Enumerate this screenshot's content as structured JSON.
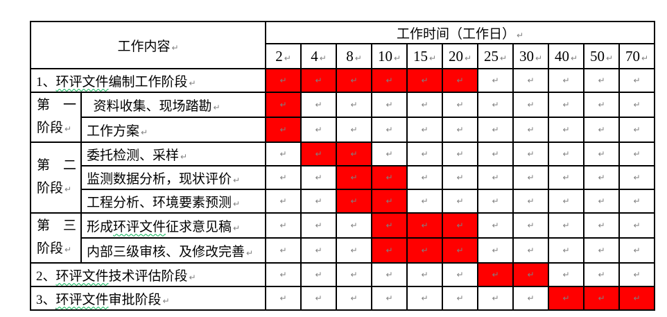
{
  "document": {
    "header": {
      "content_label": "工作内容",
      "time_label": "工作时间（工作日）"
    },
    "day_columns": [
      "2",
      "4",
      "8",
      "10",
      "15",
      "20",
      "25",
      "30",
      "40",
      "50",
      "70"
    ],
    "paragraph_mark": "↵",
    "colors": {
      "highlight": "#FF0000",
      "formatting_mark": "#808080",
      "spellcheck_squiggle": "#00B050",
      "border": "#000000"
    },
    "stages": [
      {
        "label_lines": [
          "第　一",
          "阶段"
        ],
        "row_span": 2
      },
      {
        "label_lines": [
          "第　二",
          "阶段"
        ],
        "row_span": 3
      },
      {
        "label_lines": [
          "第　三",
          "阶段"
        ],
        "row_span": 2
      }
    ],
    "rows": [
      {
        "id": "phase-1-compilation",
        "full_width": true,
        "segments": [
          {
            "text": "1、"
          },
          {
            "text": "环评文件",
            "squiggle": true
          },
          {
            "text": "编制工作阶段"
          }
        ],
        "red_days": [
          "2",
          "4",
          "8",
          "10",
          "15",
          "20"
        ]
      },
      {
        "id": "stage1-data-collection",
        "stage": 0,
        "segments": [
          {
            "text": " 资料收集、现场踏勘"
          }
        ],
        "red_days": [
          "2"
        ]
      },
      {
        "id": "stage1-work-plan",
        "segments": [
          {
            "text": "工作方案"
          }
        ],
        "red_days": [
          "2"
        ]
      },
      {
        "id": "stage2-commissioned-sampling",
        "stage": 1,
        "segments": [
          {
            "text": "委托检测、采样"
          }
        ],
        "red_days": [
          "4",
          "8"
        ]
      },
      {
        "id": "stage2-monitoring-analysis",
        "segments": [
          {
            "text": "监测数据分析，现状评价"
          }
        ],
        "red_days": [
          "8",
          "10"
        ]
      },
      {
        "id": "stage2-project-analysis",
        "segments": [
          {
            "text": "工程分析、环境要素预测"
          }
        ],
        "red_days": [
          "8",
          "10"
        ]
      },
      {
        "id": "stage3-draft-for-comments",
        "stage": 2,
        "segments": [
          {
            "text": "形成"
          },
          {
            "text": "环评文件",
            "squiggle": true
          },
          {
            "text": "征求意见稿"
          }
        ],
        "red_days": [
          "10",
          "15",
          "20"
        ]
      },
      {
        "id": "stage3-internal-review",
        "segments": [
          {
            "text": "内部三级审核、及修改完善"
          }
        ],
        "red_days": [
          "10",
          "15",
          "20"
        ]
      },
      {
        "id": "phase-2-technical-evaluation",
        "full_width": true,
        "segments": [
          {
            "text": "2、"
          },
          {
            "text": "环评文件",
            "squiggle": true
          },
          {
            "text": "技术评估阶段"
          }
        ],
        "red_days": [
          "25",
          "30"
        ]
      },
      {
        "id": "phase-3-approval",
        "full_width": true,
        "segments": [
          {
            "text": "3、"
          },
          {
            "text": "环评文件",
            "squiggle": true
          },
          {
            "text": "审批阶段"
          }
        ],
        "red_days": [
          "40",
          "50",
          "70"
        ]
      }
    ],
    "stray_mark": "."
  }
}
